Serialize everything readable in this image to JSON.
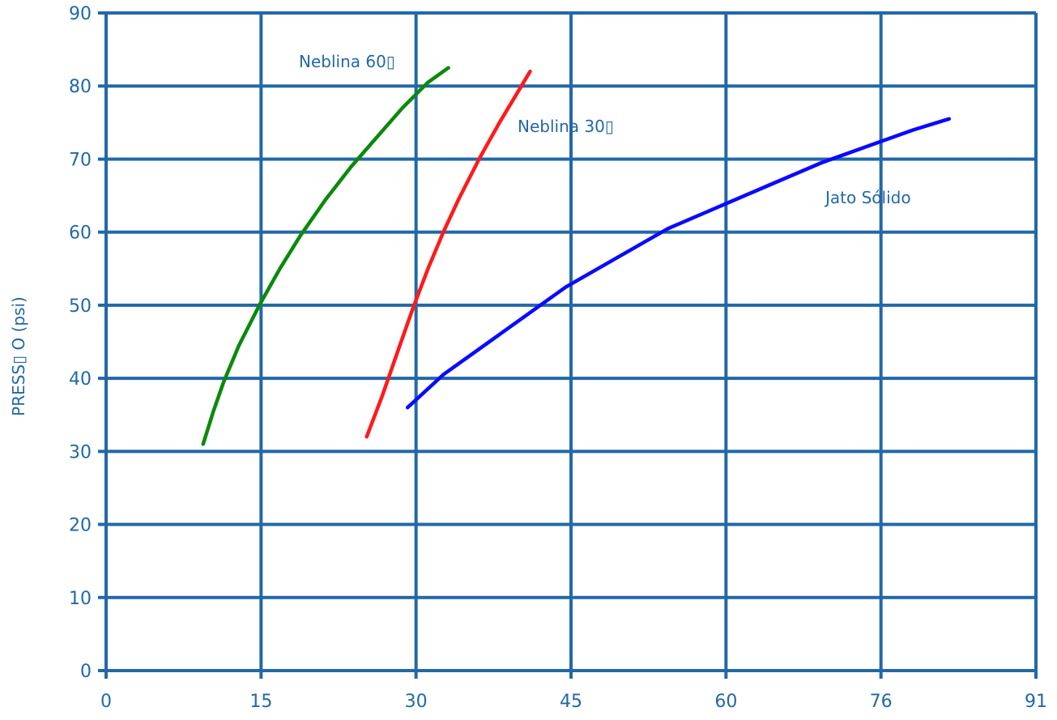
{
  "chart_data": {
    "type": "line",
    "title": "",
    "xlabel": "",
    "ylabel": "PRESS▯ O (psi)",
    "xlim": [
      0,
      91
    ],
    "ylim": [
      0,
      90
    ],
    "x_ticks": [
      "0",
      "15",
      "30",
      "45",
      "60",
      "76",
      "91"
    ],
    "y_ticks": [
      "0",
      "10",
      "20",
      "30",
      "40",
      "50",
      "60",
      "70",
      "80",
      "90"
    ],
    "grid": true,
    "colors": {
      "axis": "#2268a8",
      "grid": "#2268a8",
      "text": "#2268a8"
    },
    "series": [
      {
        "name": "Neblina 60▯",
        "color": "#0a8a0a",
        "x": [
          9.5,
          10.5,
          11.5,
          13,
          15,
          17,
          19,
          21.5,
          24,
          26.5,
          29,
          31.5,
          33.5
        ],
        "y": [
          31,
          35.5,
          39.5,
          44.5,
          50,
          55,
          59.5,
          64.5,
          69,
          73,
          77,
          80.5,
          82.5
        ]
      },
      {
        "name": "Neblina 30▯",
        "color": "#ff1a1a",
        "x": [
          25.5,
          27,
          28.5,
          30,
          31.5,
          33,
          34.5,
          36.5,
          38.5,
          40,
          41.5
        ],
        "y": [
          32,
          37.5,
          43.5,
          49.5,
          55,
          60,
          64.5,
          70,
          75,
          78.5,
          82
        ]
      },
      {
        "name": "Jato Sólido",
        "color": "#0a0aff",
        "x": [
          29.5,
          33,
          37,
          41,
          45,
          50,
          55,
          60,
          65,
          70,
          75,
          79,
          82.5
        ],
        "y": [
          36,
          40.5,
          44.5,
          48.5,
          52.5,
          56.5,
          60.5,
          63.5,
          66.5,
          69.5,
          72,
          74,
          75.5
        ]
      }
    ],
    "annotations": [
      "Neblina 60▯",
      "Neblina 30▯",
      "Jato Sólido"
    ]
  }
}
